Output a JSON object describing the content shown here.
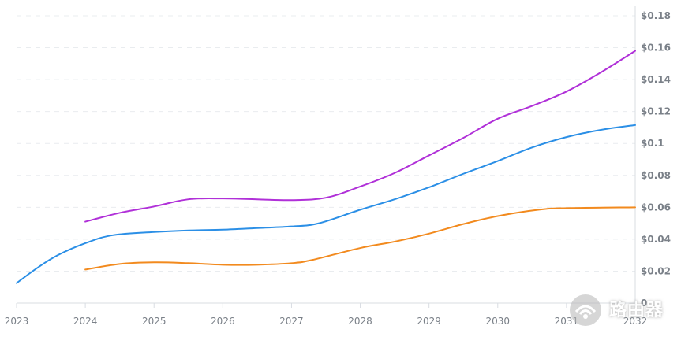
{
  "chart_data": {
    "type": "line",
    "x": [
      2023,
      2024,
      2025,
      2026,
      2027,
      2028,
      2029,
      2030,
      2031,
      2032
    ],
    "x_tick_labels": [
      "2023",
      "2024",
      "2025",
      "2026",
      "2027",
      "2028",
      "2029",
      "2030",
      "2031",
      "2032"
    ],
    "y_tick_labels": [
      "0",
      "$0.02",
      "$0.04",
      "$0.06",
      "$0.08",
      "$0.1",
      "$0.12",
      "$0.14",
      "$0.16",
      "$0.18"
    ],
    "y_ticks": [
      0,
      0.02,
      0.04,
      0.06,
      0.08,
      0.1,
      0.12,
      0.14,
      0.16,
      0.18
    ],
    "ylim": [
      0,
      0.18
    ],
    "xlim": [
      2023,
      2032
    ],
    "grid": true,
    "y_axis_side": "right",
    "series": [
      {
        "color": "#2b8fe6",
        "points": [
          [
            2023.0,
            0.0125
          ],
          [
            2023.3,
            0.022
          ],
          [
            2023.6,
            0.03
          ],
          [
            2024.0,
            0.0375
          ],
          [
            2024.4,
            0.0425
          ],
          [
            2025.0,
            0.0445
          ],
          [
            2025.5,
            0.0455
          ],
          [
            2026.0,
            0.046
          ],
          [
            2026.5,
            0.047
          ],
          [
            2027.0,
            0.048
          ],
          [
            2027.4,
            0.05
          ],
          [
            2028.0,
            0.0585
          ],
          [
            2028.5,
            0.065
          ],
          [
            2029.0,
            0.0725
          ],
          [
            2029.5,
            0.081
          ],
          [
            2030.0,
            0.089
          ],
          [
            2030.5,
            0.0975
          ],
          [
            2031.0,
            0.104
          ],
          [
            2031.5,
            0.1085
          ],
          [
            2032.0,
            0.1115
          ]
        ]
      },
      {
        "color": "#b030d8",
        "points": [
          [
            2024.0,
            0.051
          ],
          [
            2024.5,
            0.0565
          ],
          [
            2025.0,
            0.0605
          ],
          [
            2025.5,
            0.065
          ],
          [
            2026.0,
            0.0655
          ],
          [
            2026.5,
            0.065
          ],
          [
            2027.0,
            0.0645
          ],
          [
            2027.5,
            0.066
          ],
          [
            2028.0,
            0.073
          ],
          [
            2028.5,
            0.0815
          ],
          [
            2029.0,
            0.0925
          ],
          [
            2029.5,
            0.1035
          ],
          [
            2030.0,
            0.1155
          ],
          [
            2030.5,
            0.1235
          ],
          [
            2031.0,
            0.1325
          ],
          [
            2031.5,
            0.1445
          ],
          [
            2032.0,
            0.158
          ]
        ]
      },
      {
        "color": "#f28a1e",
        "points": [
          [
            2024.0,
            0.021
          ],
          [
            2024.5,
            0.0245
          ],
          [
            2025.0,
            0.0255
          ],
          [
            2025.5,
            0.025
          ],
          [
            2026.0,
            0.024
          ],
          [
            2026.5,
            0.024
          ],
          [
            2027.0,
            0.025
          ],
          [
            2027.3,
            0.027
          ],
          [
            2028.0,
            0.0345
          ],
          [
            2028.5,
            0.0385
          ],
          [
            2029.0,
            0.0435
          ],
          [
            2029.5,
            0.0495
          ],
          [
            2030.0,
            0.0545
          ],
          [
            2030.6,
            0.0585
          ],
          [
            2031.0,
            0.0595
          ],
          [
            2032.0,
            0.06
          ]
        ]
      }
    ]
  },
  "watermark": {
    "text": "路由器",
    "brand_color": "#9a9a9a",
    "icon": "router-logo-icon"
  }
}
